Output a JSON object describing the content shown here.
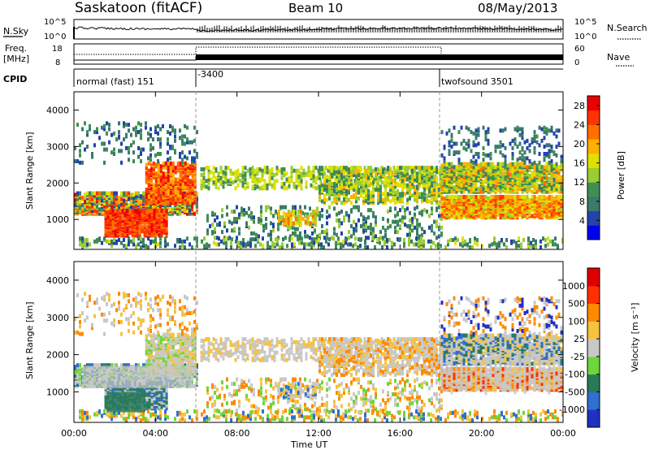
{
  "header": {
    "station": "Saskatoon (fitACF)",
    "beam": "Beam 10",
    "date": "08/May/2013"
  },
  "top_panels": {
    "nsky_label": "N.Sky",
    "nsearch_label": "N.Search",
    "freq_label_line1": "Freq.",
    "freq_label_line2": "[MHz]",
    "nave_label": "Nave",
    "cpid_label": "CPID",
    "noise_left_ticks": [
      "10^5",
      "10^0"
    ],
    "noise_right_ticks": [
      "10^5",
      "10^0"
    ],
    "freq_ticks": [
      "18",
      "8"
    ],
    "nave_ticks": [
      "60",
      "0"
    ],
    "cpid_segments": [
      {
        "label": "normal (fast) 151",
        "start_hour": 0,
        "end_hour": 6
      },
      {
        "label": "-3400",
        "start_hour": 6,
        "end_hour": 18
      },
      {
        "label": "twofsound 3501",
        "start_hour": 18,
        "end_hour": 24
      }
    ]
  },
  "chart_data": [
    {
      "type": "heatmap",
      "title": "Power",
      "ylabel": "Slant Range [km]",
      "xlabel": "",
      "ylim": [
        180,
        4500
      ],
      "xlim": [
        0,
        24
      ],
      "yticks": [
        "4000",
        "3000",
        "2000",
        "1000"
      ],
      "ytick_values": [
        4000,
        3000,
        2000,
        1000
      ],
      "colorbar": {
        "label": "Power [dB]",
        "tick_labels": [
          "28",
          "24",
          "20",
          "16",
          "12",
          "8",
          "4"
        ],
        "tick_values": [
          28,
          24,
          20,
          16,
          12,
          8,
          4
        ],
        "range": [
          0,
          30
        ],
        "colors": [
          "#0000ee",
          "#2244aa",
          "#3a7a6a",
          "#3f8f52",
          "#9acd32",
          "#e0e000",
          "#ffb000",
          "#ff7000",
          "#ff3300",
          "#ee0000"
        ]
      }
    },
    {
      "type": "heatmap",
      "title": "Velocity",
      "ylabel": "Slant Range [km]",
      "xlabel": "Time UT",
      "ylim": [
        180,
        4500
      ],
      "xlim": [
        0,
        24
      ],
      "yticks": [
        "4000",
        "3000",
        "2000",
        "1000"
      ],
      "ytick_values": [
        4000,
        3000,
        2000,
        1000
      ],
      "xticks": [
        "00:00",
        "04:00",
        "08:00",
        "12:00",
        "16:00",
        "20:00",
        "00:00"
      ],
      "xtick_values": [
        0,
        4,
        8,
        12,
        16,
        20,
        24
      ],
      "colorbar": {
        "label": "Velocity [m s⁻¹]",
        "tick_labels": [
          "1000",
          "500",
          "100",
          "25",
          "-25",
          "-100",
          "-500",
          "-1000"
        ],
        "colors": [
          "#2030c0",
          "#2e6fd0",
          "#2a7a58",
          "#6dd63a",
          "#c8c8c8",
          "#f5c242",
          "#ff8a00",
          "#ff3000",
          "#e00000"
        ]
      }
    }
  ]
}
